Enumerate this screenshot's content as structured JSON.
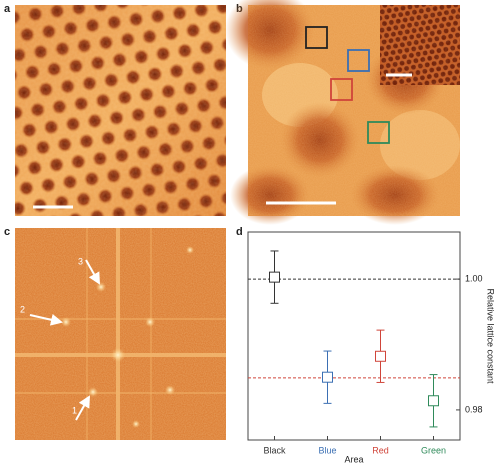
{
  "panels": [
    "a",
    "b",
    "c",
    "d"
  ],
  "fft_labels": [
    "1",
    "2",
    "3"
  ],
  "chart_data": {
    "type": "errorbar",
    "ylabel": "Relative lattice constant",
    "xlabel": "Area",
    "categories": [
      "Black",
      "Blue",
      "Red",
      "Green"
    ],
    "colors": [
      "#333333",
      "#3b6fb3",
      "#d0453a",
      "#2f8a5a"
    ],
    "values": [
      1.0003,
      0.985,
      0.9882,
      0.9814
    ],
    "errors": [
      0.004,
      0.004,
      0.004,
      0.004
    ],
    "reference_lines": [
      {
        "value": 1.0,
        "color": "#333333"
      },
      {
        "value": 0.9849,
        "color": "#d0453a"
      }
    ],
    "ylim": [
      0.9754,
      1.0072
    ],
    "yticks": [
      {
        "value": 0.98,
        "label": "0.98"
      },
      {
        "value": 1.0,
        "label": "1.00"
      }
    ]
  }
}
